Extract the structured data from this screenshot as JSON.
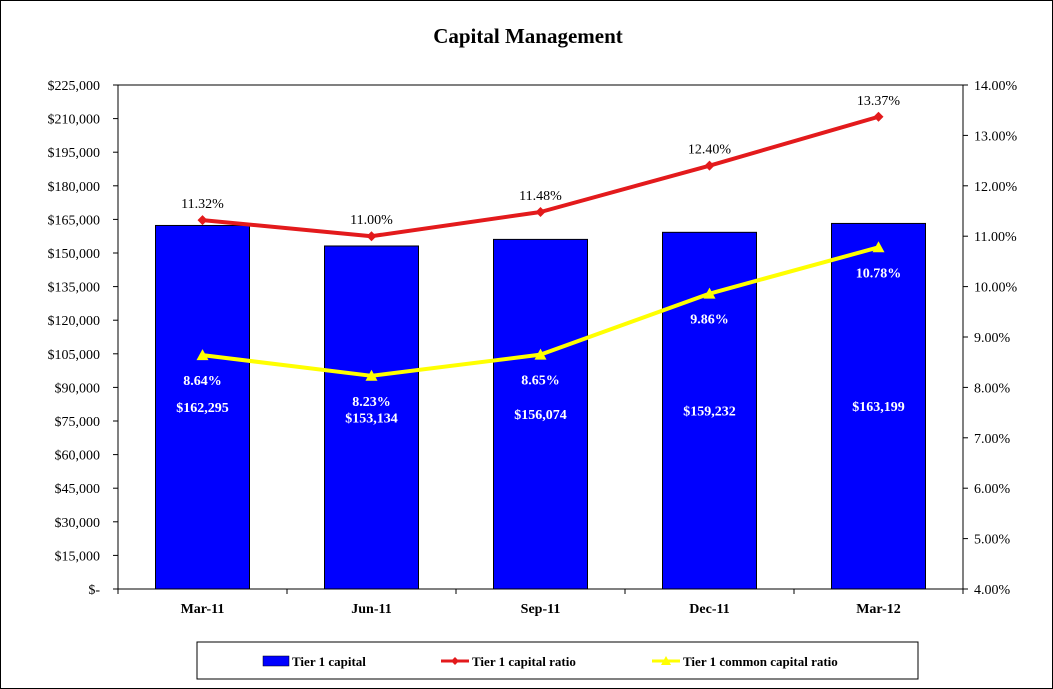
{
  "chart_data": {
    "type": "bar",
    "title": "Capital Management",
    "categories": [
      "Mar-11",
      "Jun-11",
      "Sep-11",
      "Dec-11",
      "Mar-12"
    ],
    "y_left": {
      "ylim": [
        0,
        225000
      ],
      "ticks": [
        "$-",
        "$15,000",
        "$30,000",
        "$45,000",
        "$60,000",
        "$75,000",
        "$90,000",
        "$105,000",
        "$120,000",
        "$135,000",
        "$150,000",
        "$165,000",
        "$180,000",
        "$195,000",
        "$210,000",
        "$225,000"
      ]
    },
    "y_right": {
      "ylim": [
        4.0,
        14.0
      ],
      "ticks": [
        "4.00%",
        "5.00%",
        "6.00%",
        "7.00%",
        "8.00%",
        "9.00%",
        "10.00%",
        "11.00%",
        "12.00%",
        "13.00%",
        "14.00%"
      ]
    },
    "grid": false,
    "legend_position": "bottom",
    "series": [
      {
        "name": "Tier 1 capital",
        "type": "bar",
        "axis": "left",
        "color": "#0000ff",
        "values": [
          162295,
          153134,
          156074,
          159232,
          163199
        ],
        "labels": [
          "$162,295",
          "$153,134",
          "$156,074",
          "$159,232",
          "$163,199"
        ]
      },
      {
        "name": "Tier 1 capital ratio",
        "type": "line",
        "axis": "right",
        "color": "#e31a1c",
        "marker": "diamond",
        "values": [
          11.32,
          11.0,
          11.48,
          12.4,
          13.37
        ],
        "labels": [
          "11.32%",
          "11.00%",
          "11.48%",
          "12.40%",
          "13.37%"
        ]
      },
      {
        "name": "Tier 1 common capital ratio",
        "type": "line",
        "axis": "right",
        "color": "#ffff00",
        "marker": "triangle",
        "values": [
          8.64,
          8.23,
          8.65,
          9.86,
          10.78
        ],
        "labels": [
          "8.64%",
          "8.23%",
          "8.65%",
          "9.86%",
          "10.78%"
        ]
      }
    ]
  }
}
